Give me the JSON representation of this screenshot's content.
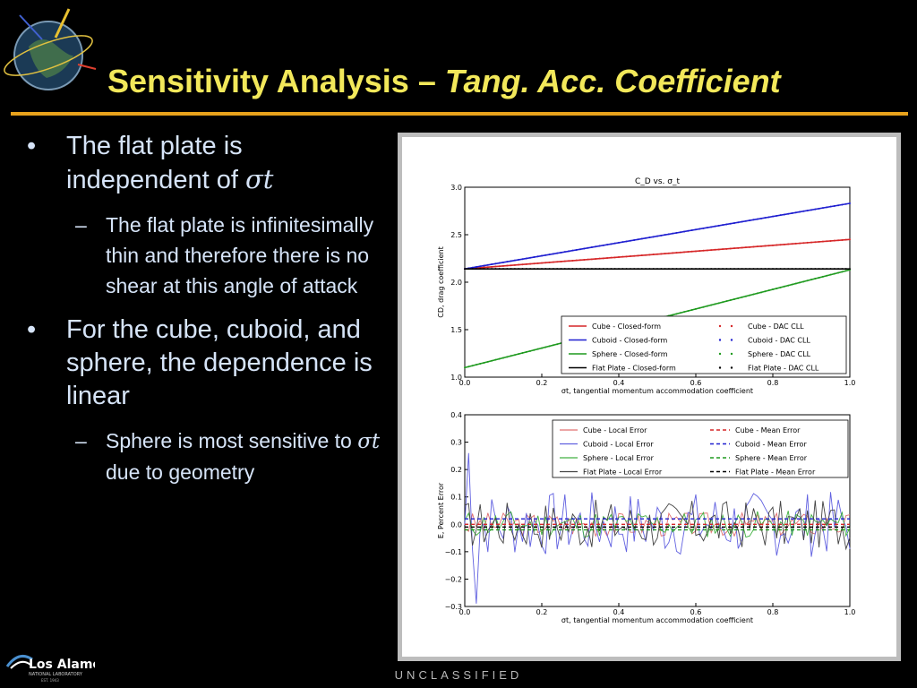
{
  "title": {
    "main": "Sensitivity Analysis – ",
    "italic": "Tang. Acc. Coefficient"
  },
  "bullets": [
    {
      "text": "The flat plate is independent of ",
      "sym": "σt",
      "subs": [
        {
          "text": "The flat plate is infinitesimally thin and therefore there is no shear at this angle of attack",
          "sym": "",
          "after": ""
        }
      ]
    },
    {
      "text": "For the cube, cuboid, and sphere, the dependence is linear",
      "sym": "",
      "subs": [
        {
          "text": "Sphere is most sensitive to ",
          "sym": "σt",
          "after": " due to geometry"
        }
      ]
    }
  ],
  "footer": "UNCLASSIFIED",
  "logo": {
    "name": "Los Alamos",
    "sub": "NATIONAL LABORATORY",
    "est": "EST. 1943"
  },
  "colors": {
    "title": "#f2e85a",
    "rule": "#e8a21c",
    "text": "#d6e4f8",
    "cube": "#d62728",
    "cuboid": "#1f1fd0",
    "sphere": "#1f9a1f",
    "flat": "#000000"
  },
  "chart_data": [
    {
      "type": "line",
      "title": "C_D vs. σ_t",
      "xlabel": "σt, tangential momentum accommodation coefficient",
      "ylabel": "CD, drag coefficient",
      "xlim": [
        0,
        1
      ],
      "ylim": [
        1.0,
        3.0
      ],
      "xticks": [
        "0.0",
        "0.2",
        "0.4",
        "0.6",
        "0.8",
        "1.0"
      ],
      "yticks": [
        "1.0",
        "1.5",
        "2.0",
        "2.5",
        "3.0"
      ],
      "legend_position": "lower-right",
      "series": [
        {
          "name": "Cube - Closed-form",
          "color": "#d62728",
          "x": [
            0,
            1
          ],
          "y": [
            2.14,
            2.45
          ]
        },
        {
          "name": "Cuboid - Closed-form",
          "color": "#1f1fd0",
          "x": [
            0,
            1
          ],
          "y": [
            2.14,
            2.83
          ]
        },
        {
          "name": "Sphere - Closed-form",
          "color": "#1f9a1f",
          "x": [
            0,
            1
          ],
          "y": [
            1.1,
            2.13
          ]
        },
        {
          "name": "Flat Plate - Closed-form",
          "color": "#000000",
          "x": [
            0,
            1
          ],
          "y": [
            2.14,
            2.14
          ]
        }
      ],
      "dac_legend": [
        "Cube - DAC CLL",
        "Cuboid - DAC CLL",
        "Sphere - DAC CLL",
        "Flat Plate - DAC CLL"
      ]
    },
    {
      "type": "line",
      "xlabel": "σt, tangential momentum accommodation coefficient",
      "ylabel": "E, Percent Error",
      "xlim": [
        0,
        1
      ],
      "ylim": [
        -0.3,
        0.4
      ],
      "xticks": [
        "0.0",
        "0.2",
        "0.4",
        "0.6",
        "0.8",
        "1.0"
      ],
      "yticks": [
        "−0.3",
        "−0.2",
        "−0.1",
        "0.0",
        "0.1",
        "0.2",
        "0.3",
        "0.4"
      ],
      "legend_position": "upper-right",
      "local_series": [
        {
          "name": "Cube - Local Error",
          "color": "#e07070",
          "amp": 0.045,
          "seed": 3
        },
        {
          "name": "Cuboid - Local Error",
          "color": "#6060e0",
          "amp": 0.12,
          "seed": 7
        },
        {
          "name": "Sphere - Local Error",
          "color": "#40b040",
          "amp": 0.05,
          "seed": 11
        },
        {
          "name": "Flat Plate - Local Error",
          "color": "#444444",
          "amp": 0.09,
          "seed": 17
        }
      ],
      "mean_series": [
        {
          "name": "Cube - Mean Error",
          "color": "#d62728",
          "value": 0.0
        },
        {
          "name": "Cuboid - Mean Error",
          "color": "#1f1fd0",
          "value": 0.02
        },
        {
          "name": "Sphere - Mean Error",
          "color": "#1f9a1f",
          "value": -0.02
        },
        {
          "name": "Flat Plate - Mean Error",
          "color": "#000000",
          "value": -0.01
        }
      ]
    }
  ]
}
